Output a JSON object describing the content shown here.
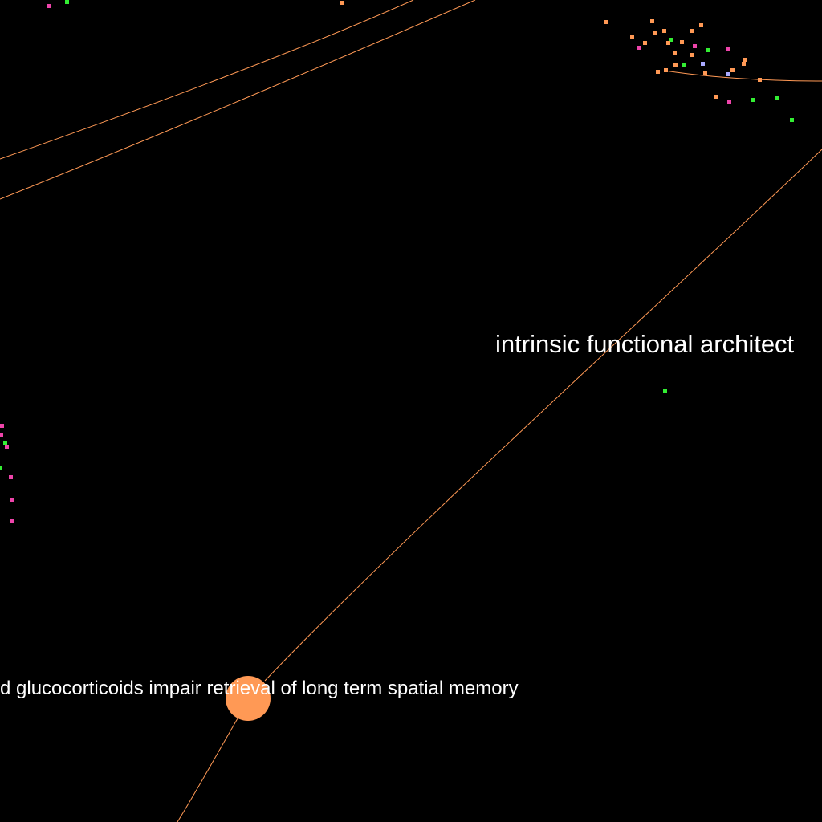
{
  "graph": {
    "background": "#000000",
    "edge_color": "#ff9955",
    "palette": {
      "orange": "#ff9955",
      "green": "#33ee33",
      "pink": "#ee44aa",
      "lavender": "#aaaaff"
    },
    "labels": {
      "focus_node": "d glucocorticoids impair retrieval of long term spatial memory",
      "architecture_node": "intrinsic functional architect"
    }
  }
}
